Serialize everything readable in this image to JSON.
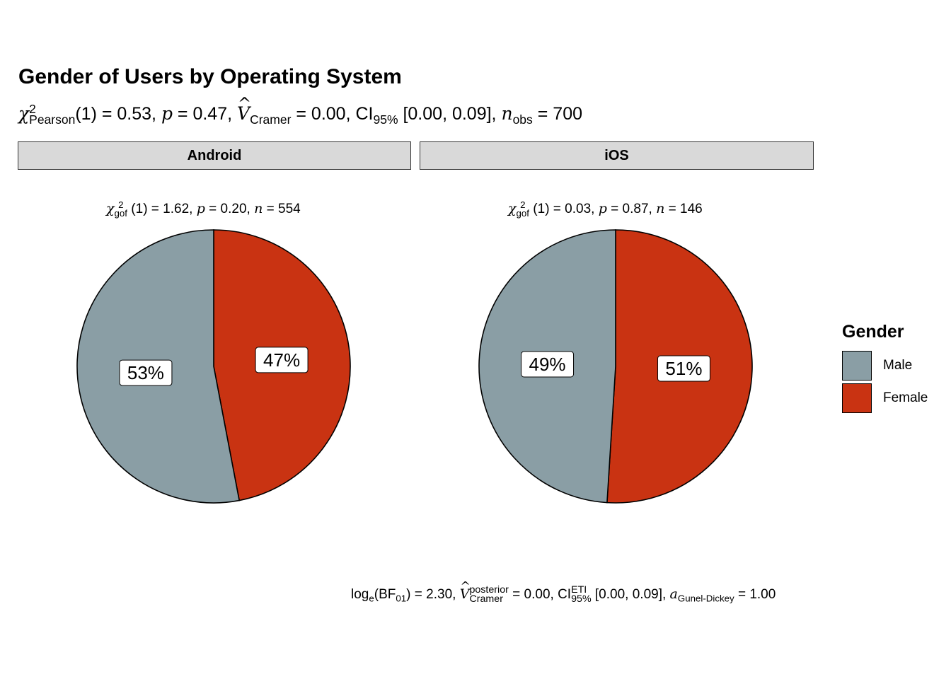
{
  "chart_data": {
    "type": "pie",
    "title": "Gender of Users by Operating System",
    "subtitle": {
      "stat": "χ²Pearson(1) = 0.53",
      "p": "p = 0.47",
      "effect": "V̂Cramer = 0.00",
      "ci": "CI95% [0.00, 0.09]",
      "n": "nobs = 700"
    },
    "categories": [
      "Male",
      "Female"
    ],
    "colors": {
      "Male": "#8A9EA5",
      "Female": "#C93312"
    },
    "legend": {
      "title": "Gender",
      "position": "right"
    },
    "panels": [
      {
        "name": "Android",
        "stat_text": "χ²gof (1) = 1.62, p = 0.20, n = 554",
        "values": [
          53,
          47
        ],
        "labels": [
          "53%",
          "47%"
        ]
      },
      {
        "name": "iOS",
        "stat_text": "χ²gof (1) = 0.03, p = 0.87, n = 146",
        "values": [
          49,
          51
        ],
        "labels": [
          "49%",
          "51%"
        ]
      }
    ],
    "caption": "loge(BF01) = 2.30, V̂posteriorCramer = 0.00, CIETI95% [0.00, 0.09], aGunel-Dickey = 1.00"
  },
  "text": {
    "sub_chi": "χ",
    "sub_chi_sup": "2",
    "sub_chi_sub": "Pearson",
    "sub_df": "(1) = 0.53,",
    "sub_p_var": "p",
    "sub_p_val": " = 0.47,",
    "sub_v": "V",
    "sub_v_sub": "Cramer",
    "sub_v_val": " = 0.00, CI",
    "sub_ci_sub": "95%",
    "sub_ci_val": " [0.00, 0.09],",
    "sub_n": "n",
    "sub_n_sub": "obs",
    "sub_n_val": " = 700",
    "android_chi": "χ",
    "android_sup": "2",
    "android_sub": "gof",
    "android_rest": " (1) = 1.62, ",
    "android_p": "p",
    "android_pv": " = 0.20, ",
    "android_n": "n",
    "android_nv": " = 554",
    "ios_chi": "χ",
    "ios_sup": "2",
    "ios_sub": "gof",
    "ios_rest": " (1) = 0.03, ",
    "ios_p": "p",
    "ios_pv": " = 0.87, ",
    "ios_n": "n",
    "ios_nv": " = 146",
    "cap_log": "log",
    "cap_log_sub": "e",
    "cap_bf": "(BF",
    "cap_bf_sub": "01",
    "cap_bf_val": ") = 2.30, ",
    "cap_v": "V",
    "cap_v_sup": "posterior",
    "cap_v_sub": "Cramer",
    "cap_v_val": " = 0.00, CI",
    "cap_ci_sup": "ETI",
    "cap_ci_sub": "95%",
    "cap_ci_val": " [0.00, 0.09], ",
    "cap_a": "a",
    "cap_a_sub": "Gunel-Dickey",
    "cap_a_val": " = 1.00"
  }
}
